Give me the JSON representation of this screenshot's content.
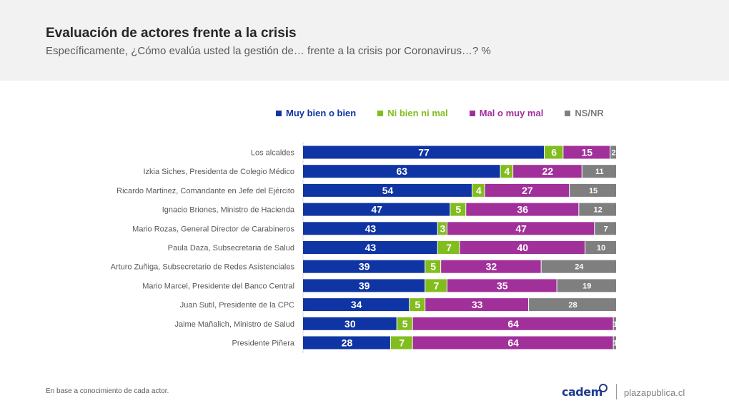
{
  "header": {
    "title": "Evaluación de actores frente a la crisis",
    "subtitle": "Específicamente, ¿Cómo evalúa usted la gestión de… frente a la crisis por Coronavirus…? %"
  },
  "footer": {
    "note": "En base a conocimiento de cada actor.",
    "brand": "cadem",
    "site": "plazapublica.cl"
  },
  "chart_data": {
    "type": "bar",
    "orientation": "horizontal",
    "stacked": true,
    "legend_position": "top",
    "xlim": [
      0,
      100
    ],
    "grid": false,
    "categories": [
      "Los alcaldes",
      "Izkia Siches, Presidenta de Colegio Médico",
      "Ricardo Martinez, Comandante en Jefe del Ejército",
      "Ignacio Briones, Ministro de Hacienda",
      "Mario Rozas, General Director de Carabineros",
      "Paula Daza, Subsecretaria de Salud",
      "Arturo Zuñiga, Subsecretario de Redes Asistenciales",
      "Mario Marcel, Presidente del Banco Central",
      "Juan Sutil, Presidente de la CPC",
      "Jaime Mañalich, Ministro de Salud",
      "Presidente Piñera"
    ],
    "series": [
      {
        "name": "Muy bien o bien",
        "color": "#0f34a3",
        "values": [
          77,
          63,
          54,
          47,
          43,
          43,
          39,
          39,
          34,
          30,
          28
        ]
      },
      {
        "name": "Ni bien ni mal",
        "color": "#82bd1e",
        "values": [
          6,
          4,
          4,
          5,
          3,
          7,
          5,
          7,
          5,
          5,
          7
        ]
      },
      {
        "name": "Mal o muy mal",
        "color": "#a1309a",
        "values": [
          15,
          22,
          27,
          36,
          47,
          40,
          32,
          35,
          33,
          64,
          64
        ]
      },
      {
        "name": "NS/NR",
        "color": "#7f7f7f",
        "values": [
          2,
          11,
          15,
          12,
          7,
          10,
          24,
          19,
          28,
          1,
          1
        ]
      }
    ]
  }
}
